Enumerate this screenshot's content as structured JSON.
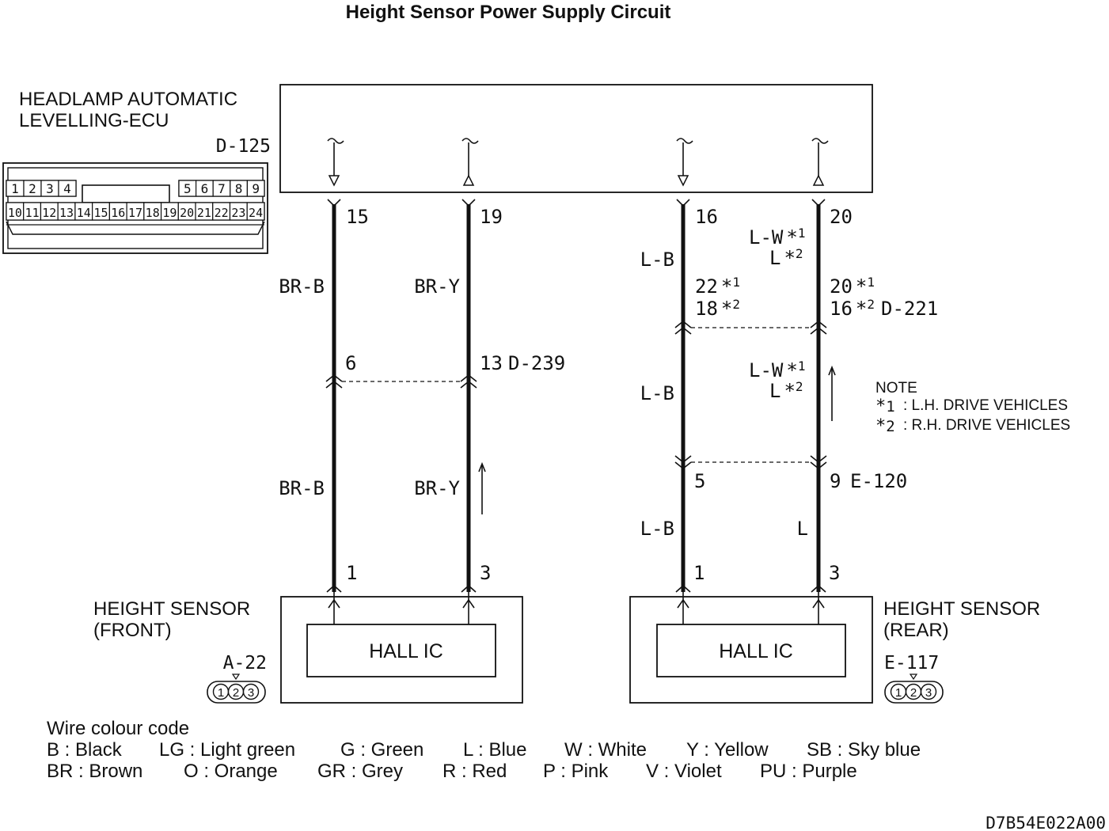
{
  "title": "Height Sensor Power Supply Circuit",
  "ecu": {
    "name_line1": "HEADLAMP AUTOMATIC",
    "name_line2": "LEVELLING-ECU",
    "connector": "D-125",
    "pins_top_left": [
      "1",
      "2",
      "3",
      "4"
    ],
    "pins_top_right": [
      "5",
      "6",
      "7",
      "8",
      "9"
    ],
    "pins_bottom": [
      "10",
      "11",
      "12",
      "13",
      "14",
      "15",
      "16",
      "17",
      "18",
      "19",
      "20",
      "21",
      "22",
      "23",
      "24"
    ]
  },
  "wires": {
    "w1": {
      "ecu_pin": "15",
      "upper_colour": "BR-B",
      "junction_pin": "6",
      "lower_colour": "BR-B",
      "sensor_pin": "1"
    },
    "w2": {
      "ecu_pin": "19",
      "upper_colour": "BR-Y",
      "junction_pin": "13",
      "junction_connector": "D-239",
      "lower_colour": "BR-Y",
      "sensor_pin": "3"
    },
    "w3": {
      "ecu_pin": "16",
      "upper_colour": "L-B",
      "junction_pin_a": "22",
      "junction_pin_b": "18",
      "mid_colour": "L-B",
      "lower_pin": "5",
      "lower_colour": "L-B",
      "sensor_pin": "1"
    },
    "w4": {
      "ecu_pin": "20",
      "upper_colour_a": "L-W",
      "upper_colour_b": "L",
      "junction_pin_a": "20",
      "junction_pin_b": "16",
      "junction_connector": "D-221",
      "mid_colour_a": "L-W",
      "mid_colour_b": "L",
      "lower_pin": "9",
      "lower_connector": "E-120",
      "lower_colour": "L",
      "sensor_pin": "3"
    }
  },
  "notes": {
    "star": "*",
    "mark1": "1",
    "mark2": "2",
    "heading": "NOTE",
    "line1": ": L.H. DRIVE VEHICLES",
    "line2": ": R.H. DRIVE VEHICLES"
  },
  "sensors": {
    "front": {
      "name_line1": "HEIGHT SENSOR",
      "name_line2": "(FRONT)",
      "connector": "A-22",
      "ic_label": "HALL IC",
      "pins": [
        "1",
        "2",
        "3"
      ]
    },
    "rear": {
      "name_line1": "HEIGHT SENSOR",
      "name_line2": "(REAR)",
      "connector": "E-117",
      "ic_label": "HALL IC",
      "pins": [
        "1",
        "2",
        "3"
      ]
    }
  },
  "legend": {
    "heading": "Wire colour code",
    "row1": [
      "B : Black",
      "LG : Light green",
      "G : Green",
      "L : Blue",
      "W : White",
      "Y : Yellow",
      "SB : Sky blue"
    ],
    "row2": [
      "BR : Brown",
      "O : Orange",
      "GR : Grey",
      "R : Red",
      "P : Pink",
      "V : Violet",
      "PU : Purple"
    ]
  },
  "figure_code": "D7B54E022A00"
}
